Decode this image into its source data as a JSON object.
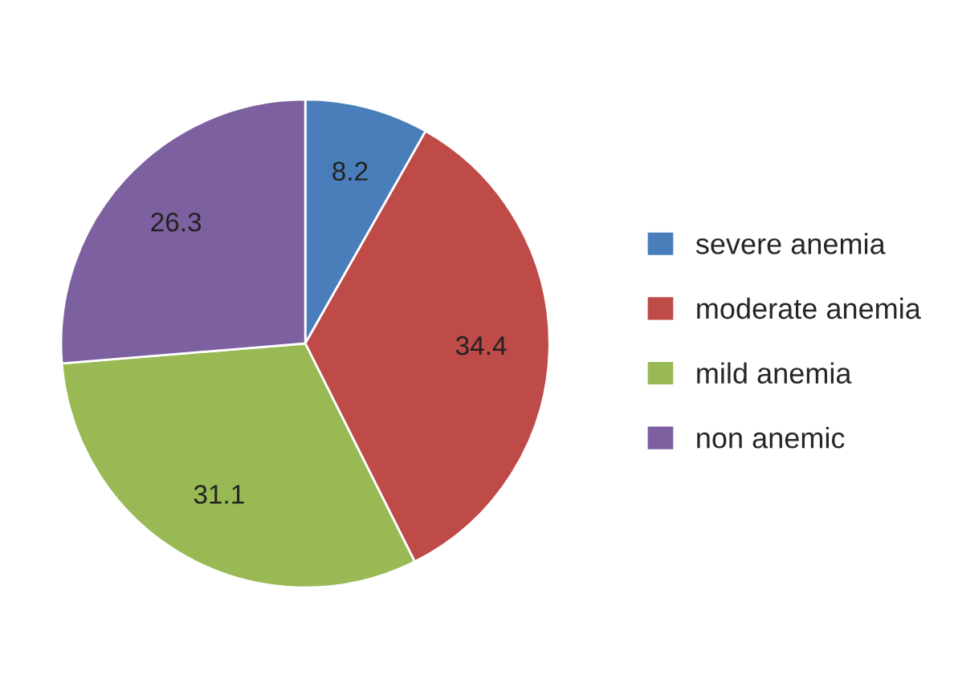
{
  "chart_data": {
    "type": "pie",
    "categories": [
      "severe anemia",
      "moderate anemia",
      "mild anemia",
      "non anemic"
    ],
    "values": [
      8.2,
      34.4,
      31.1,
      26.3
    ],
    "colors": [
      "#4a7ebb",
      "#be4b48",
      "#98b954",
      "#7d60a0"
    ],
    "data_labels": true,
    "legend": "right"
  }
}
